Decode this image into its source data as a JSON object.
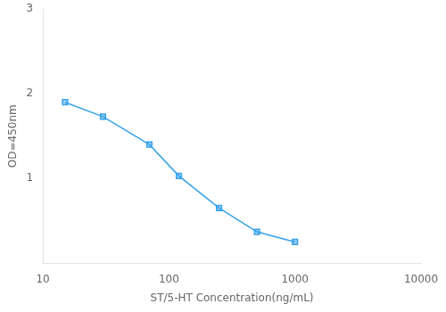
{
  "chart_data": {
    "type": "line",
    "x": [
      15,
      30,
      70,
      120,
      250,
      500,
      1000
    ],
    "values": [
      1.9,
      1.73,
      1.4,
      1.03,
      0.65,
      0.37,
      0.25
    ],
    "marker": "square",
    "xlabel": "ST/5-HT Concentration(ng/mL)",
    "ylabel": "OD=450nm",
    "log": "x",
    "xlim": [
      10,
      10000
    ],
    "ylim": [
      0,
      3
    ],
    "xticks": [
      10,
      100,
      1000,
      10000
    ],
    "yticks": [
      1,
      2,
      3
    ],
    "grid": false
  }
}
